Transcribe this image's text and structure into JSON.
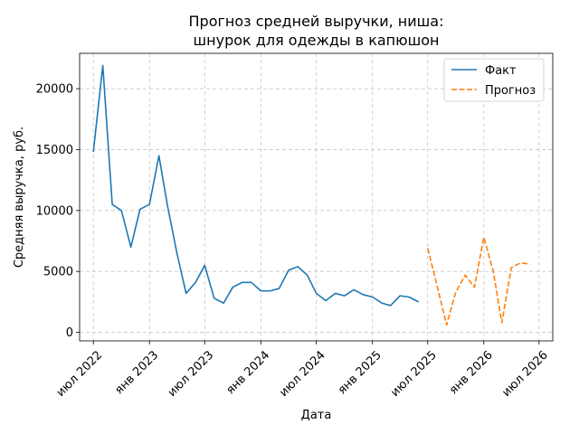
{
  "chart_data": {
    "type": "line",
    "title": [
      "Прогноз средней выручки, ниша:",
      "шнурок для одежды в капюшон"
    ],
    "xlabel": "Дата",
    "ylabel": "Средняя выручка, руб.",
    "xlim": [
      "2022-05-17",
      "2026-08-15"
    ],
    "ylim": [
      -700,
      22900
    ],
    "grid": true,
    "legend_position": "top-right",
    "x_ticks": [
      {
        "date": "2022-07-01",
        "label": "июл 2022"
      },
      {
        "date": "2023-01-01",
        "label": "янв 2023"
      },
      {
        "date": "2023-07-01",
        "label": "июл 2023"
      },
      {
        "date": "2024-01-01",
        "label": "янв 2024"
      },
      {
        "date": "2024-07-01",
        "label": "июл 2024"
      },
      {
        "date": "2025-01-01",
        "label": "янв 2025"
      },
      {
        "date": "2025-07-01",
        "label": "июл 2025"
      },
      {
        "date": "2026-01-01",
        "label": "янв 2026"
      },
      {
        "date": "2026-07-01",
        "label": "июл 2026"
      }
    ],
    "y_ticks": [
      0,
      5000,
      10000,
      15000,
      20000
    ],
    "series": [
      {
        "name": "Факт",
        "color": "#1f77b4",
        "style": "solid",
        "x": [
          "2022-07-01",
          "2022-08-01",
          "2022-09-01",
          "2022-10-01",
          "2022-11-01",
          "2022-12-01",
          "2023-01-01",
          "2023-02-01",
          "2023-03-01",
          "2023-04-01",
          "2023-05-01",
          "2023-06-01",
          "2023-07-01",
          "2023-08-01",
          "2023-09-01",
          "2023-10-01",
          "2023-11-01",
          "2023-12-01",
          "2024-01-01",
          "2024-02-01",
          "2024-03-01",
          "2024-04-01",
          "2024-05-01",
          "2024-06-01",
          "2024-07-01",
          "2024-08-01",
          "2024-09-01",
          "2024-10-01",
          "2024-11-01",
          "2024-12-01",
          "2025-01-01",
          "2025-02-01",
          "2025-03-01",
          "2025-04-01",
          "2025-05-01",
          "2025-06-01"
        ],
        "y": [
          14800,
          21900,
          10500,
          10000,
          7000,
          10100,
          10500,
          14500,
          10400,
          6500,
          3200,
          4100,
          5500,
          2800,
          2400,
          3700,
          4100,
          4100,
          3400,
          3400,
          3600,
          5100,
          5400,
          4700,
          3200,
          2600,
          3200,
          3000,
          3500,
          3100,
          2900,
          2400,
          2200,
          3000,
          2900,
          2500
        ]
      },
      {
        "name": "Прогноз",
        "color": "#ff7f0e",
        "style": "dashed",
        "x": [
          "2025-07-01",
          "2025-08-01",
          "2025-09-01",
          "2025-10-01",
          "2025-11-01",
          "2025-12-01",
          "2026-01-01",
          "2026-02-01",
          "2026-03-01",
          "2026-04-01",
          "2026-05-01",
          "2026-06-01"
        ],
        "y": [
          6900,
          3800,
          600,
          3300,
          4700,
          3700,
          7800,
          5000,
          800,
          5300,
          5700,
          5600
        ]
      }
    ]
  }
}
